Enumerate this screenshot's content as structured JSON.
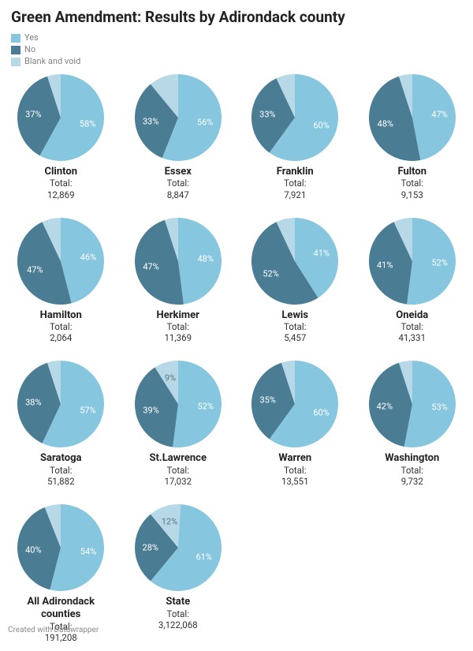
{
  "title": "Green Amendment: Results by Adirondack county",
  "legend": {
    "items": [
      {
        "label": "Yes",
        "color": "#86c7df"
      },
      {
        "label": "No",
        "color": "#4a7d94"
      },
      {
        "label": "Blank and void",
        "color": "#b7d8e6"
      }
    ]
  },
  "colors": {
    "yes": "#86c7df",
    "no": "#4a7d94",
    "blank": "#b7d8e6",
    "labelYes": "#ffffff",
    "labelNo": "#ffffff",
    "labelBlank": "#5c7682"
  },
  "grid": {
    "cols": 4
  },
  "pie": {
    "radius": 55,
    "labelRadius": 35
  },
  "total_label": "Total:",
  "footer": "Created with Datawrapper",
  "charts": [
    {
      "name": "Clinton",
      "total": "12,869",
      "yes": 58,
      "no": 37,
      "show": [
        "yes",
        "no"
      ]
    },
    {
      "name": "Essex",
      "total": "8,847",
      "yes": 56,
      "no": 33,
      "show": [
        "yes",
        "no"
      ]
    },
    {
      "name": "Franklin",
      "total": "7,921",
      "yes": 60,
      "no": 33,
      "show": [
        "yes",
        "no"
      ]
    },
    {
      "name": "Fulton",
      "total": "9,153",
      "yes": 47,
      "no": 48,
      "show": [
        "yes",
        "no"
      ]
    },
    {
      "name": "Hamilton",
      "total": "2,064",
      "yes": 46,
      "no": 47,
      "show": [
        "yes",
        "no"
      ]
    },
    {
      "name": "Herkimer",
      "total": "11,369",
      "yes": 48,
      "no": 47,
      "show": [
        "yes",
        "no"
      ]
    },
    {
      "name": "Lewis",
      "total": "5,457",
      "yes": 41,
      "no": 52,
      "show": [
        "yes",
        "no"
      ]
    },
    {
      "name": "Oneida",
      "total": "41,331",
      "yes": 52,
      "no": 41,
      "show": [
        "yes",
        "no"
      ]
    },
    {
      "name": "Saratoga",
      "total": "51,882",
      "yes": 57,
      "no": 38,
      "show": [
        "yes",
        "no"
      ]
    },
    {
      "name": "St.Lawrence",
      "total": "17,032",
      "yes": 52,
      "no": 39,
      "blank": 9,
      "show": [
        "yes",
        "no",
        "blank"
      ]
    },
    {
      "name": "Warren",
      "total": "13,551",
      "yes": 60,
      "no": 35,
      "show": [
        "yes",
        "no"
      ]
    },
    {
      "name": "Washington",
      "total": "9,732",
      "yes": 53,
      "no": 42,
      "show": [
        "yes",
        "no"
      ]
    },
    {
      "name": "All Adirondack counties",
      "total": "191,208",
      "yes": 54,
      "no": 40,
      "show": [
        "yes",
        "no"
      ]
    },
    {
      "name": "State",
      "total": "3,122,068",
      "yes": 61,
      "no": 28,
      "blank": 12,
      "show": [
        "yes",
        "no",
        "blank"
      ]
    }
  ]
}
